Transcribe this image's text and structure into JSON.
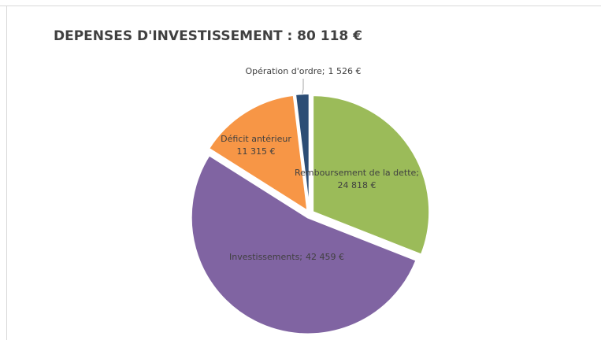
{
  "chart_data": {
    "type": "pie",
    "title": "DEPENSES D'INVESTISSEMENT : 80 118 €",
    "categories": [
      "Remboursement de la dette;",
      "Investissements;",
      "Déficit antérieur",
      "Opération d'ordre;"
    ],
    "values": [
      24818,
      42459,
      11315,
      1526
    ],
    "value_labels": [
      "24 818 €",
      "42 459 €",
      "11 315 €",
      "1 526 €"
    ],
    "colors": [
      "#9bbb59",
      "#8064a2",
      "#f79646",
      "#2c4d75"
    ]
  }
}
